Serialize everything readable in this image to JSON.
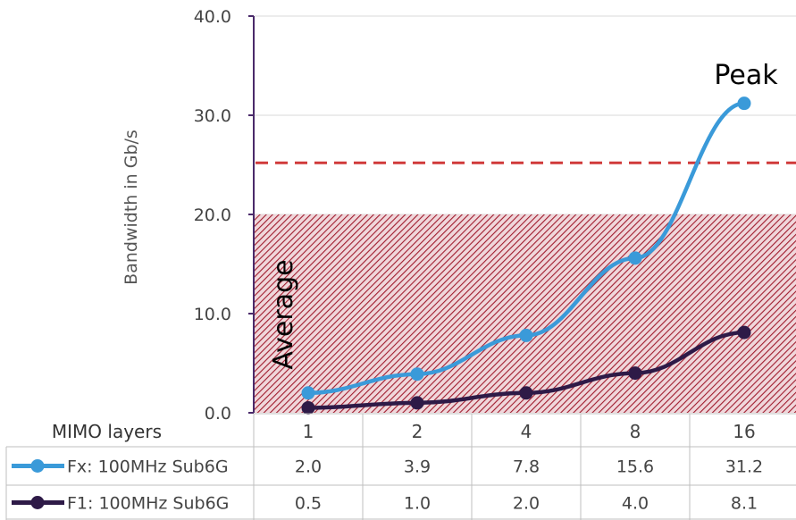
{
  "chart_data": {
    "type": "line",
    "title": "",
    "ylabel": "Bandwidth in Gb/s",
    "xlabel": "MIMO layers",
    "ylim": [
      0,
      40
    ],
    "y_ticks": [
      "0.0",
      "10.0",
      "20.0",
      "30.0",
      "40.0"
    ],
    "categories": [
      "1",
      "2",
      "4",
      "8",
      "16"
    ],
    "series": [
      {
        "name": "Fx: 100MHz Sub6G",
        "values": [
          2.0,
          3.9,
          7.8,
          15.6,
          31.2
        ],
        "labels": [
          "2.0",
          "3.9",
          "7.8",
          "15.6",
          "31.2"
        ],
        "color": "#3A9AD9"
      },
      {
        "name": "F1: 100MHz Sub6G",
        "values": [
          0.5,
          1.0,
          2.0,
          4.0,
          8.1
        ],
        "labels": [
          "0.5",
          "1.0",
          "2.0",
          "4.0",
          "8.1"
        ],
        "color": "#2E1A47"
      }
    ],
    "reference_line": {
      "value": 25.2,
      "color": "#D03A3A",
      "style": "dashed"
    },
    "average_band": {
      "from": 0,
      "to": 20,
      "label": "Average",
      "color": "#A01C2E",
      "pattern": "hatched"
    },
    "peak_label": "Peak",
    "grid": true,
    "legend": "data-table"
  }
}
